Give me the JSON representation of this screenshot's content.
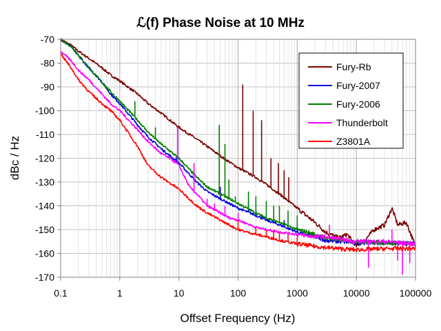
{
  "chart_data": {
    "type": "line",
    "title": "ℒ(f) Phase Noise at 10 MHz",
    "xlabel": "Offset Frequency (Hz)",
    "ylabel": "dBc / Hz",
    "x_scale": "log",
    "xlim": [
      0.1,
      100000
    ],
    "ylim": [
      -170,
      -70
    ],
    "x_ticks": [
      "0.1",
      "1",
      "10",
      "100",
      "1000",
      "10000",
      "100000"
    ],
    "y_ticks": [
      "-70",
      "-80",
      "-90",
      "-100",
      "-110",
      "-120",
      "-130",
      "-140",
      "-150",
      "-160",
      "-170"
    ],
    "grid": true,
    "legend_position": "top-right",
    "series": [
      {
        "name": "Fury-Rb",
        "color": "#7b0000",
        "x": [
          0.1,
          0.15,
          0.2,
          0.3,
          0.5,
          0.7,
          1,
          2,
          3,
          5,
          10,
          20,
          30,
          50,
          100,
          200,
          300,
          500,
          1000,
          2000,
          3000,
          5000,
          7000,
          10000,
          15000,
          20000,
          30000,
          40000,
          50000,
          70000,
          100000
        ],
        "y": [
          -70,
          -72.5,
          -75,
          -78,
          -82,
          -85,
          -87.5,
          -93,
          -97,
          -101,
          -107,
          -112,
          -115,
          -119,
          -124,
          -128,
          -131,
          -135,
          -141,
          -147,
          -151,
          -153.5,
          -152,
          -157,
          -153.5,
          -150,
          -148,
          -141,
          -148,
          -147,
          -157
        ],
        "spikes": [
          {
            "x": 120,
            "y": -89
          },
          {
            "x": 180,
            "y": -100
          },
          {
            "x": 250,
            "y": -104
          },
          {
            "x": 360,
            "y": -120
          },
          {
            "x": 480,
            "y": -122
          },
          {
            "x": 600,
            "y": -125
          },
          {
            "x": 720,
            "y": -128
          }
        ]
      },
      {
        "name": "Fury-2007",
        "color": "#0000e0",
        "x": [
          0.1,
          0.15,
          0.2,
          0.3,
          0.5,
          0.7,
          1,
          2,
          3,
          5,
          10,
          20,
          30,
          50,
          100,
          200,
          300,
          500,
          1000,
          2000,
          3000,
          5000,
          10000,
          30000,
          100000
        ],
        "y": [
          -70,
          -73,
          -77,
          -82,
          -88,
          -93,
          -97,
          -106,
          -111,
          -116,
          -122,
          -130,
          -134,
          -137,
          -141,
          -144,
          -146,
          -148,
          -151,
          -153,
          -154.5,
          -155,
          -155.5,
          -155.5,
          -156
        ],
        "spikes": [
          {
            "x": 9,
            "y": -119
          },
          {
            "x": 50,
            "y": -132
          },
          {
            "x": 150,
            "y": -138
          },
          {
            "x": 200,
            "y": -142
          },
          {
            "x": 250,
            "y": -144
          },
          {
            "x": 400,
            "y": -145
          },
          {
            "x": 600,
            "y": -146
          },
          {
            "x": 1000,
            "y": -148
          }
        ]
      },
      {
        "name": "Fury-2006",
        "color": "#008000",
        "x": [
          0.1,
          0.15,
          0.2,
          0.3,
          0.5,
          0.7,
          1,
          2,
          3,
          5,
          10,
          20,
          30,
          50,
          100,
          200,
          300,
          500,
          1000,
          2000,
          3000,
          5000,
          10000,
          100000
        ],
        "y": [
          -70,
          -73,
          -76.5,
          -82,
          -88,
          -92,
          -96,
          -104,
          -109,
          -114,
          -120,
          -128,
          -132,
          -135,
          -139,
          -143,
          -145,
          -147,
          -150,
          -152,
          -153.5,
          -154.5,
          -155,
          -156
        ],
        "spikes": [
          {
            "x": 1.8,
            "y": -96
          },
          {
            "x": 4,
            "y": -107
          },
          {
            "x": 48,
            "y": -106
          },
          {
            "x": 60,
            "y": -114
          },
          {
            "x": 70,
            "y": -129
          },
          {
            "x": 90,
            "y": -136
          },
          {
            "x": 120,
            "y": -140
          },
          {
            "x": 150,
            "y": -134
          },
          {
            "x": 200,
            "y": -136
          },
          {
            "x": 300,
            "y": -138
          },
          {
            "x": 400,
            "y": -140
          },
          {
            "x": 500,
            "y": -140
          },
          {
            "x": 700,
            "y": -142
          },
          {
            "x": 1000,
            "y": -144
          }
        ]
      },
      {
        "name": "Thunderbolt",
        "color": "#ff00ff",
        "x": [
          0.1,
          0.15,
          0.2,
          0.3,
          0.5,
          0.7,
          1,
          2,
          3,
          5,
          8,
          10,
          15,
          20,
          30,
          50,
          70,
          100,
          200,
          300,
          500,
          1000,
          2000,
          3000,
          5000,
          10000,
          30000,
          100000
        ],
        "y": [
          -75,
          -79,
          -83,
          -87,
          -93,
          -97,
          -100,
          -108,
          -113,
          -118,
          -121,
          -123,
          -132,
          -135,
          -140,
          -143,
          -145,
          -146,
          -149,
          -150,
          -151,
          -152,
          -153,
          -153,
          -154,
          -155,
          -155,
          -156
        ],
        "spikes": [
          {
            "x": 9.5,
            "y": -107
          },
          {
            "x": 18,
            "y": -122
          },
          {
            "x": 30,
            "y": -137
          },
          {
            "x": 40,
            "y": -139
          },
          {
            "x": 60,
            "y": -140
          },
          {
            "x": 100,
            "y": -143
          },
          {
            "x": 3500,
            "y": -148
          },
          {
            "x": 16000,
            "y": -166
          },
          {
            "x": 40000,
            "y": -150
          },
          {
            "x": 50000,
            "y": -163
          },
          {
            "x": 60000,
            "y": -169
          },
          {
            "x": 80000,
            "y": -164
          }
        ]
      },
      {
        "name": "Z3801A",
        "color": "#ff0000",
        "x": [
          0.1,
          0.15,
          0.2,
          0.3,
          0.5,
          0.7,
          1,
          2,
          3,
          5,
          10,
          20,
          30,
          50,
          100,
          200,
          300,
          500,
          1000,
          2000,
          3000,
          5000,
          10000,
          30000,
          100000
        ],
        "y": [
          -76,
          -82,
          -87,
          -92,
          -97,
          -100,
          -104,
          -115,
          -123,
          -128,
          -133,
          -140,
          -143,
          -146,
          -150,
          -152,
          -153,
          -154.5,
          -156,
          -157,
          -157.5,
          -158,
          -158.5,
          -158,
          -158
        ],
        "spikes": [
          {
            "x": 100,
            "y": -146
          },
          {
            "x": 200,
            "y": -149
          },
          {
            "x": 300,
            "y": -150
          },
          {
            "x": 400,
            "y": -150
          },
          {
            "x": 500,
            "y": -151
          },
          {
            "x": 700,
            "y": -152
          },
          {
            "x": 1000,
            "y": -153
          }
        ]
      }
    ]
  }
}
